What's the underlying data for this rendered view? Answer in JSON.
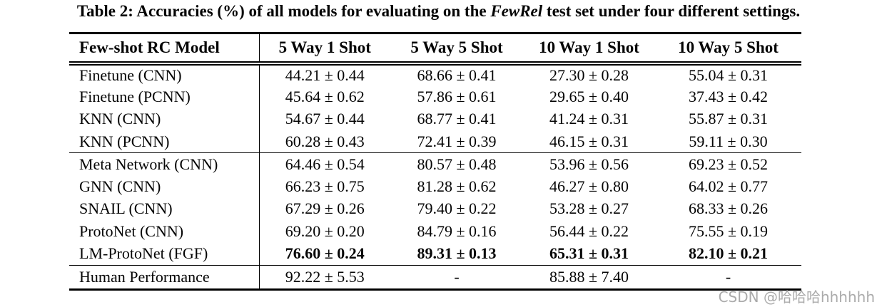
{
  "title": {
    "prefix": "Table 2: Accuracies (%) of all models for evaluating on the ",
    "emphasis": "FewRel",
    "suffix": " test set under four different settings."
  },
  "table": {
    "columns": [
      "Few-shot RC Model",
      "5 Way 1 Shot",
      "5 Way 5 Shot",
      "10 Way 1 Shot",
      "10 Way 5 Shot"
    ],
    "rows": [
      {
        "model": "Finetune (CNN)",
        "values": [
          "44.21 ± 0.44",
          "68.66 ± 0.41",
          "27.30 ± 0.28",
          "55.04 ± 0.31"
        ]
      },
      {
        "model": "Finetune (PCNN)",
        "values": [
          "45.64 ± 0.62",
          "57.86 ± 0.61",
          "29.65 ± 0.40",
          "37.43 ± 0.42"
        ]
      },
      {
        "model": "KNN (CNN)",
        "values": [
          "54.67 ± 0.44",
          "68.77 ± 0.41",
          "41.24 ± 0.31",
          "55.87 ± 0.31"
        ]
      },
      {
        "model": "KNN (PCNN)",
        "values": [
          "60.28 ± 0.43",
          "72.41 ± 0.39",
          "46.15 ± 0.31",
          "59.11 ± 0.30"
        ]
      },
      {
        "model": "Meta Network (CNN)",
        "values": [
          "64.46 ± 0.54",
          "80.57 ± 0.48",
          "53.96 ± 0.56",
          "69.23 ± 0.52"
        ]
      },
      {
        "model": "GNN (CNN)",
        "values": [
          "66.23 ± 0.75",
          "81.28 ± 0.62",
          "46.27 ± 0.80",
          "64.02 ± 0.77"
        ]
      },
      {
        "model": "SNAIL (CNN)",
        "values": [
          "67.29 ± 0.26",
          "79.40 ± 0.22",
          "53.28 ± 0.27",
          "68.33 ± 0.26"
        ]
      },
      {
        "model": "ProtoNet (CNN)",
        "values": [
          "69.20 ± 0.20",
          "84.79 ± 0.16",
          "56.44 ± 0.22",
          "75.55 ± 0.19"
        ]
      },
      {
        "model": "LM-ProtoNet (FGF)",
        "values": [
          "76.60 ± 0.24",
          "89.31 ± 0.13",
          "65.31 ± 0.31",
          "82.10 ± 0.21"
        ]
      },
      {
        "model": "Human Performance",
        "values": [
          "92.22 ± 5.53",
          "-",
          "85.88 ± 7.40",
          "-"
        ]
      }
    ]
  },
  "watermark": {
    "text": "CSDN @哈哈哈hhhhhh"
  },
  "colors": {
    "text": "#050505",
    "rule": "#000000",
    "watermark": "#ababab"
  }
}
